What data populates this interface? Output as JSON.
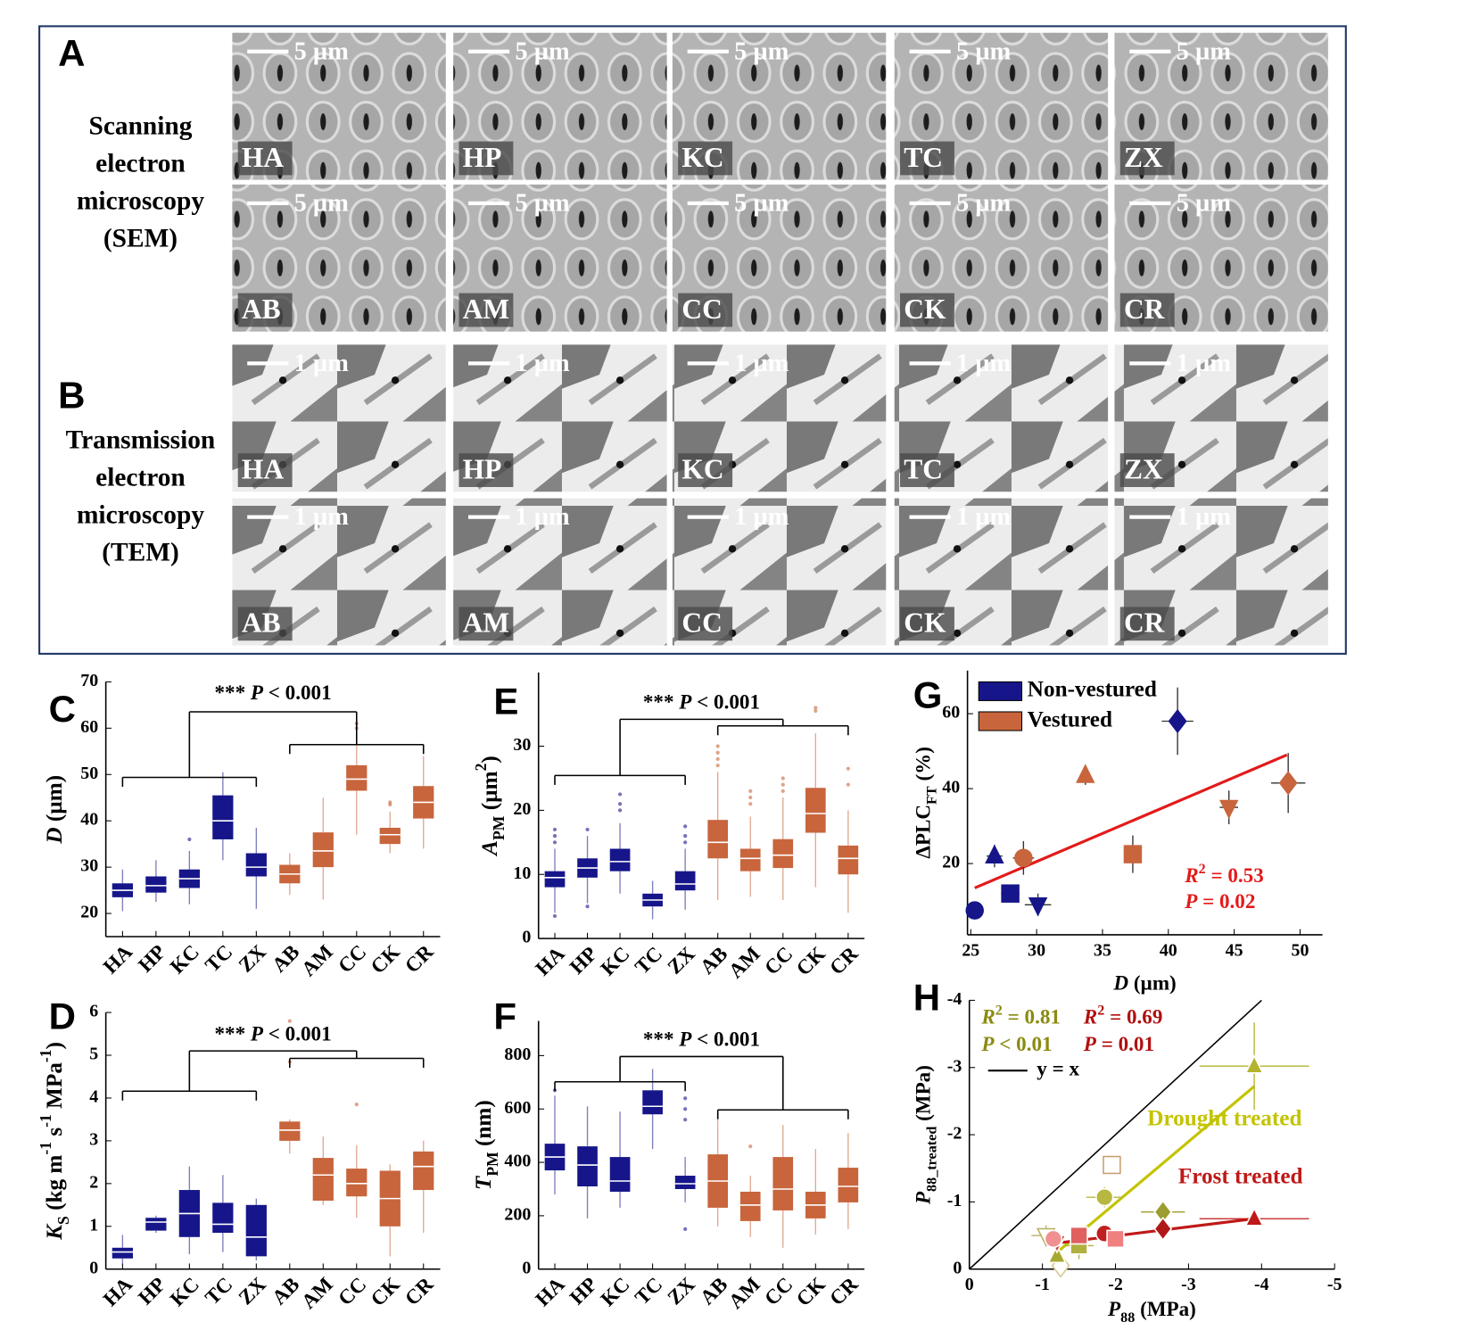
{
  "micrographs": [
    {
      "letter": "A",
      "caption": [
        "Scanning",
        "electron",
        "microscopy",
        "(SEM)"
      ],
      "scale": "5 µm",
      "rows": [
        [
          "HA",
          "HP",
          "KC",
          "TC",
          "ZX"
        ],
        [
          "AB",
          "AM",
          "CC",
          "CK",
          "CR"
        ]
      ]
    },
    {
      "letter": "B",
      "caption": [
        "Transmission",
        "electron",
        "microscopy",
        "(TEM)"
      ],
      "scale": "1 µm",
      "rows": [
        [
          "HA",
          "HP",
          "KC",
          "TC",
          "ZX"
        ],
        [
          "AB",
          "AM",
          "CC",
          "CK",
          "CR"
        ]
      ]
    }
  ],
  "chart_data": [
    {
      "type": "box",
      "panel": "C",
      "categories": [
        "HA",
        "HP",
        "KC",
        "TC",
        "ZX",
        "AB",
        "AM",
        "CC",
        "CK",
        "CR"
      ],
      "colors": [
        "#16168a",
        "#16168a",
        "#16168a",
        "#16168a",
        "#16168a",
        "#c8653c",
        "#c8653c",
        "#c8653c",
        "#c8653c",
        "#c8653c"
      ],
      "whisker_low": [
        20.5,
        22.5,
        22,
        31.5,
        21,
        24,
        23,
        37,
        33,
        34
      ],
      "q1": [
        23.5,
        24.5,
        25.5,
        36,
        28,
        26.5,
        30,
        46.5,
        35,
        40.5
      ],
      "median": [
        25,
        26,
        27.5,
        40,
        30,
        28.5,
        33.5,
        49,
        37,
        44
      ],
      "q3": [
        26.5,
        28,
        29.5,
        45.5,
        33,
        30.5,
        37.5,
        52,
        38.5,
        47.5
      ],
      "whisker_high": [
        29.5,
        31.5,
        33.5,
        50.5,
        38.5,
        33,
        45,
        57.5,
        42,
        54
      ],
      "outliers": [
        [],
        [],
        [
          36
        ],
        [],
        [],
        [],
        [],
        [
          60,
          61
        ],
        [
          43.5,
          44
        ],
        []
      ],
      "ylim": [
        15,
        70
      ],
      "yticks": [
        20,
        30,
        40,
        50,
        60,
        70
      ],
      "ylabel": [
        {
          "t": "D",
          "s": "i"
        },
        {
          "t": " (µm)"
        }
      ],
      "annotation": [
        {
          "t": "*** "
        },
        {
          "t": "P",
          "s": "i"
        },
        {
          "t": " < 0.001"
        }
      ]
    },
    {
      "type": "box",
      "panel": "E",
      "categories": [
        "HA",
        "HP",
        "KC",
        "TC",
        "ZX",
        "AB",
        "AM",
        "CC",
        "CK",
        "CR"
      ],
      "colors": [
        "#16168a",
        "#16168a",
        "#16168a",
        "#16168a",
        "#16168a",
        "#c8653c",
        "#c8653c",
        "#c8653c",
        "#c8653c",
        "#c8653c"
      ],
      "whisker_low": [
        4,
        5.5,
        7,
        3,
        4.5,
        6,
        6.5,
        6,
        8,
        4
      ],
      "q1": [
        8,
        9.5,
        10.5,
        5,
        7.5,
        12.5,
        10.5,
        11,
        16.5,
        10
      ],
      "median": [
        9.5,
        11,
        12,
        6,
        8.5,
        15,
        12.5,
        13,
        19.5,
        12.5
      ],
      "q3": [
        10.5,
        12.5,
        14,
        7,
        10.5,
        18.5,
        14,
        15.5,
        23.5,
        14.5
      ],
      "whisker_high": [
        14,
        16,
        18,
        9,
        14,
        26,
        19,
        22,
        32,
        20
      ],
      "outliers": [
        [
          3.5,
          15,
          16,
          17
        ],
        [
          5,
          17
        ],
        [
          20,
          21,
          22.5
        ],
        [],
        [
          15,
          16,
          17.5
        ],
        [
          27,
          28,
          29,
          30
        ],
        [
          21,
          22,
          23
        ],
        [
          23,
          24,
          25
        ],
        [
          35.5,
          36
        ],
        [
          24,
          26.5
        ]
      ],
      "ylim": [
        0,
        41.5
      ],
      "yticks": [
        0,
        10,
        20,
        30
      ],
      "ylabel": [
        {
          "t": "A",
          "s": "i"
        },
        {
          "t": "PM",
          "s": "sub"
        },
        {
          "t": " (µm"
        },
        {
          "t": "2",
          "s": "sup"
        },
        {
          "t": ")"
        }
      ],
      "annotation": [
        {
          "t": "*** "
        },
        {
          "t": "P",
          "s": "i"
        },
        {
          "t": " < 0.001"
        }
      ]
    },
    {
      "type": "box",
      "panel": "D",
      "categories": [
        "HA",
        "HP",
        "KC",
        "TC",
        "ZX",
        "AB",
        "AM",
        "CC",
        "CK",
        "CR"
      ],
      "colors": [
        "#16168a",
        "#16168a",
        "#16168a",
        "#16168a",
        "#16168a",
        "#c8653c",
        "#c8653c",
        "#c8653c",
        "#c8653c",
        "#c8653c"
      ],
      "whisker_low": [
        0.1,
        0.85,
        0.35,
        0.4,
        0.2,
        2.7,
        1.5,
        1.2,
        0.3,
        0.85
      ],
      "q1": [
        0.25,
        0.9,
        0.75,
        0.85,
        0.3,
        3.0,
        1.6,
        1.7,
        1.0,
        1.85
      ],
      "median": [
        0.4,
        1.1,
        1.3,
        1.05,
        0.75,
        3.25,
        2.2,
        2.0,
        1.65,
        2.4
      ],
      "q3": [
        0.5,
        1.2,
        1.85,
        1.55,
        1.5,
        3.45,
        2.6,
        2.35,
        2.3,
        2.75
      ],
      "whisker_high": [
        0.8,
        1.25,
        2.4,
        2.2,
        1.65,
        3.5,
        3.1,
        2.9,
        2.45,
        3.0
      ],
      "outliers": [
        [],
        [],
        [],
        [],
        [],
        [
          4.85,
          5.8
        ],
        [],
        [
          3.85
        ],
        [],
        []
      ],
      "ylim": [
        0,
        6
      ],
      "yticks": [
        0,
        1,
        2,
        3,
        4,
        5,
        6
      ],
      "ylabel": [
        {
          "t": "K",
          "s": "i"
        },
        {
          "t": "S",
          "s": "sub"
        },
        {
          "t": " (kg m"
        },
        {
          "t": "-1",
          "s": "sup"
        },
        {
          "t": " s"
        },
        {
          "t": "-1",
          "s": "sup"
        },
        {
          "t": " MPa"
        },
        {
          "t": "-1",
          "s": "sup"
        },
        {
          "t": ")"
        }
      ],
      "annotation": [
        {
          "t": "*** "
        },
        {
          "t": "P",
          "s": "i"
        },
        {
          "t": " < 0.001"
        }
      ]
    },
    {
      "type": "box",
      "panel": "F",
      "categories": [
        "HA",
        "HP",
        "KC",
        "TC",
        "ZX",
        "AB",
        "AM",
        "CC",
        "CK",
        "CR"
      ],
      "colors": [
        "#16168a",
        "#16168a",
        "#16168a",
        "#16168a",
        "#16168a",
        "#c8653c",
        "#c8653c",
        "#c8653c",
        "#c8653c",
        "#c8653c"
      ],
      "whisker_low": [
        280,
        190,
        230,
        450,
        250,
        160,
        120,
        80,
        130,
        150
      ],
      "q1": [
        370,
        310,
        290,
        580,
        300,
        230,
        180,
        220,
        190,
        250
      ],
      "median": [
        420,
        390,
        330,
        610,
        320,
        330,
        240,
        300,
        240,
        310
      ],
      "q3": [
        470,
        460,
        420,
        670,
        350,
        430,
        290,
        420,
        290,
        380
      ],
      "whisker_high": [
        650,
        610,
        590,
        750,
        420,
        560,
        350,
        540,
        450,
        510
      ],
      "outliers": [
        [
          670
        ],
        [],
        [],
        [],
        [
          150,
          560,
          600,
          640
        ],
        [],
        [
          460
        ],
        [],
        [],
        []
      ],
      "ylim": [
        0,
        930
      ],
      "yticks": [
        0,
        200,
        400,
        600,
        800
      ],
      "ylabel": [
        {
          "t": "T",
          "s": "i"
        },
        {
          "t": "PM",
          "s": "sub"
        },
        {
          "t": " (nm)"
        }
      ],
      "annotation": [
        {
          "t": "*** "
        },
        {
          "t": "P",
          "s": "i"
        },
        {
          "t": " < 0.001"
        }
      ]
    },
    {
      "type": "scatter",
      "panel": "G",
      "legend": "upper left",
      "series": [
        {
          "name": "Non-vestured",
          "color": "#16168a",
          "x": [
            25.3,
            28,
            30.1,
            40.7,
            26.8
          ],
          "y": [
            7.5,
            12,
            9,
            58,
            22
          ],
          "xerr": [
            null,
            0.7,
            1,
            1.2,
            0.6
          ],
          "yerr": [
            null,
            1.5,
            3,
            9,
            3
          ],
          "markers": [
            "circle",
            "square",
            "triangle-down",
            "diamond",
            "triangle-up"
          ]
        },
        {
          "name": "Vestured",
          "color": "#c8653c",
          "x": [
            29,
            37.3,
            49.1,
            33.7,
            44.6
          ],
          "y": [
            21.5,
            22.5,
            41.5,
            43.5,
            35
          ],
          "xerr": [
            0.8,
            0.5,
            1.3,
            0.4,
            0.7
          ],
          "yerr": [
            4.5,
            5,
            8,
            2.5,
            4.5
          ],
          "markers": [
            "circle",
            "square",
            "diamond",
            "triangle-up",
            "triangle-down"
          ]
        }
      ],
      "fit": {
        "x": [
          25.3,
          49
        ],
        "y": [
          13.5,
          49
        ],
        "color": "#e31a1a"
      },
      "xlim": [
        24.75,
        51.7
      ],
      "xticks": [
        25,
        30,
        35,
        40,
        45,
        50
      ],
      "ylim": [
        1,
        71.5
      ],
      "yticks": [
        20,
        40,
        60
      ],
      "xlabel": [
        {
          "t": "D",
          "s": "i"
        },
        {
          "t": " (µm)"
        }
      ],
      "ylabel": [
        {
          "t": "ΔPLC"
        },
        {
          "t": "FT",
          "s": "sub"
        },
        {
          "t": " (%)"
        }
      ],
      "annotations": [
        {
          "color": "#e31a1a",
          "text": [
            {
              "t": "R",
              "s": "i"
            },
            {
              "t": "2",
              "s": "sup"
            },
            {
              "t": " = 0.53"
            }
          ]
        },
        {
          "color": "#e31a1a",
          "text": [
            {
              "t": "P",
              "s": "i"
            },
            {
              "t": " = 0.02"
            }
          ]
        }
      ]
    },
    {
      "type": "scatter",
      "panel": "H",
      "legend": "upper left",
      "direct_labels": true,
      "reference": {
        "label": "y = x",
        "color": "#000000"
      },
      "series": [
        {
          "name": "Drought treated",
          "color": "#c3c300",
          "x": [
            -3.9,
            -1.85,
            -2.65,
            -1.95,
            -1.5,
            -1.05,
            -1.25,
            -1.2
          ],
          "y": [
            -3.02,
            -1.07,
            -0.85,
            -1.55,
            -0.35,
            -0.5,
            -0.05,
            -0.2
          ],
          "xerr": [
            0.75,
            0.25,
            0.3,
            null,
            0.2,
            0.2,
            null,
            null
          ],
          "yerr": [
            0.65,
            0.15,
            0.15,
            null,
            0.2,
            0.15,
            null,
            null
          ],
          "markers": [
            "triangle-up",
            "circle",
            "diamond",
            "square",
            "square",
            "triangle-down",
            "diamond",
            "triangle-up"
          ],
          "point_colors": [
            "#b3b32e",
            "#b8b840",
            "#9c9c30",
            "#c8a070",
            "#b0b040",
            "#b8b060",
            "#d8c890",
            "#a8a830"
          ],
          "open": [
            false,
            false,
            false,
            true,
            false,
            true,
            true,
            false
          ],
          "fit": {
            "x": [
              -1.2,
              -3.9
            ],
            "y": [
              -0.25,
              -2.72
            ]
          }
        },
        {
          "name": "Frost treated",
          "color": "#c01818",
          "x": [
            -3.9,
            -1.85,
            -2.65,
            -2.0,
            -1.5,
            -1.2,
            -1.15
          ],
          "y": [
            -0.75,
            -0.53,
            -0.6,
            -0.45,
            -0.5,
            -0.4,
            -0.45
          ],
          "xerr": [
            0.75,
            null,
            null,
            null,
            null,
            null,
            null
          ],
          "yerr": [
            null,
            null,
            null,
            null,
            null,
            null,
            null
          ],
          "markers": [
            "triangle-up",
            "circle",
            "diamond",
            "square",
            "square",
            "triangle-down",
            "circle"
          ],
          "point_colors": [
            "#c01818",
            "#c02020",
            "#b01818",
            "#f08080",
            "#e06060",
            "#d04040",
            "#f09090"
          ],
          "open": [
            false,
            false,
            false,
            false,
            false,
            false,
            false
          ],
          "fit": {
            "x": [
              -1.15,
              -3.9
            ],
            "y": [
              -0.38,
              -0.75
            ]
          }
        }
      ],
      "xlim": [
        0,
        -5
      ],
      "xticks": [
        0,
        -1,
        -2,
        -3,
        -4,
        -5
      ],
      "ylim": [
        0,
        -4
      ],
      "yticks": [
        0,
        -1,
        -2,
        -3,
        -4
      ],
      "xlabel": [
        {
          "t": "P",
          "s": "i"
        },
        {
          "t": "88",
          "s": "sub"
        },
        {
          "t": " (MPa)"
        }
      ],
      "ylabel": [
        {
          "t": "P",
          "s": "i"
        },
        {
          "t": "88_treated",
          "s": "sub"
        },
        {
          "t": " (MPa)"
        }
      ],
      "annotations": [
        {
          "color": "#8a8a10",
          "text": [
            {
              "t": "R",
              "s": "i"
            },
            {
              "t": "2",
              "s": "sup"
            },
            {
              "t": " = 0.81"
            }
          ]
        },
        {
          "color": "#8a8a10",
          "text": [
            {
              "t": "P",
              "s": "i"
            },
            {
              "t": " < 0.01"
            }
          ]
        },
        {
          "color": "#b01010",
          "text": [
            {
              "t": "R",
              "s": "i"
            },
            {
              "t": "2",
              "s": "sup"
            },
            {
              "t": " = 0.69"
            }
          ]
        },
        {
          "color": "#b01010",
          "text": [
            {
              "t": "P",
              "s": "i"
            },
            {
              "t": " = 0.01"
            }
          ]
        }
      ]
    }
  ]
}
